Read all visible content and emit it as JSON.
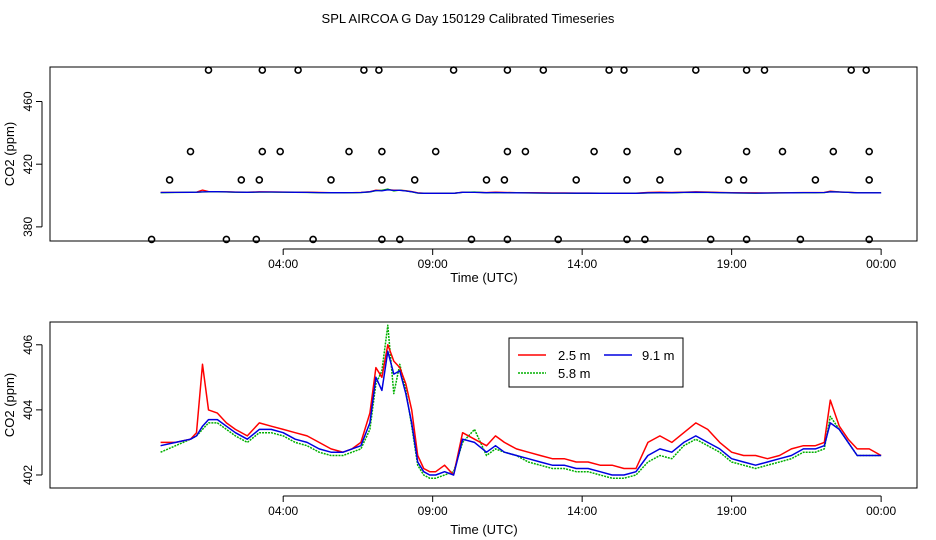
{
  "title": "SPL AIRCOA G  Day 150129  Calibrated Timeseries",
  "chart_data": [
    {
      "type": "scatter+line",
      "xlabel": "Time (UTC)",
      "ylabel": "CO2 (ppm)",
      "xlim": [
        -3.8,
        25.2
      ],
      "ylim": [
        371,
        482
      ],
      "x_ticks": [
        4,
        9,
        14,
        19,
        24
      ],
      "x_tick_labels": [
        "04:00",
        "09:00",
        "14:00",
        "19:00",
        "00:00"
      ],
      "y_ticks": [
        380,
        420,
        460
      ],
      "y_tick_labels": [
        "380",
        "420",
        "460"
      ],
      "grid": false,
      "points_style": "open circles",
      "points": [
        [
          -0.4,
          372
        ],
        [
          0.2,
          410
        ],
        [
          0.9,
          428
        ],
        [
          1.5,
          480
        ],
        [
          2.1,
          372
        ],
        [
          2.6,
          410
        ],
        [
          3.1,
          372
        ],
        [
          3.2,
          410
        ],
        [
          3.3,
          428
        ],
        [
          3.3,
          480
        ],
        [
          3.9,
          428
        ],
        [
          4.5,
          480
        ],
        [
          5.0,
          372
        ],
        [
          5.6,
          410
        ],
        [
          6.2,
          428
        ],
        [
          6.7,
          480
        ],
        [
          7.2,
          480
        ],
        [
          7.3,
          428
        ],
        [
          7.3,
          410
        ],
        [
          7.3,
          372
        ],
        [
          7.9,
          372
        ],
        [
          8.4,
          410
        ],
        [
          9.1,
          428
        ],
        [
          9.7,
          480
        ],
        [
          10.3,
          372
        ],
        [
          10.8,
          410
        ],
        [
          11.4,
          410
        ],
        [
          11.5,
          428
        ],
        [
          11.5,
          480
        ],
        [
          11.5,
          372
        ],
        [
          12.1,
          428
        ],
        [
          12.7,
          480
        ],
        [
          13.2,
          372
        ],
        [
          13.8,
          410
        ],
        [
          14.4,
          428
        ],
        [
          14.9,
          480
        ],
        [
          15.4,
          480
        ],
        [
          15.5,
          428
        ],
        [
          15.5,
          410
        ],
        [
          15.5,
          372
        ],
        [
          16.1,
          372
        ],
        [
          16.6,
          410
        ],
        [
          17.2,
          428
        ],
        [
          17.8,
          480
        ],
        [
          18.3,
          372
        ],
        [
          18.9,
          410
        ],
        [
          19.4,
          410
        ],
        [
          19.5,
          372
        ],
        [
          19.5,
          428
        ],
        [
          19.5,
          480
        ],
        [
          20.1,
          480
        ],
        [
          20.7,
          428
        ],
        [
          21.3,
          372
        ],
        [
          21.8,
          410
        ],
        [
          22.4,
          428
        ],
        [
          23.0,
          480
        ],
        [
          23.5,
          480
        ],
        [
          23.6,
          428
        ],
        [
          23.6,
          410
        ],
        [
          23.6,
          372
        ]
      ],
      "lines_flat_value": 402
    },
    {
      "type": "line",
      "xlabel": "Time (UTC)",
      "ylabel": "CO2 (ppm)",
      "xlim": [
        -3.8,
        25.2
      ],
      "ylim": [
        401.6,
        406.7
      ],
      "x_ticks": [
        4,
        9,
        14,
        19,
        24
      ],
      "x_tick_labels": [
        "04:00",
        "09:00",
        "14:00",
        "19:00",
        "00:00"
      ],
      "y_ticks": [
        402,
        404,
        406
      ],
      "y_tick_labels": [
        "402",
        "404",
        "406"
      ],
      "grid": false,
      "legend_position": "top-center",
      "series": [
        {
          "name": "2.5 m",
          "color": "#ff0000",
          "x": [
            -0.1,
            0.4,
            0.9,
            1.1,
            1.3,
            1.5,
            1.8,
            2.1,
            2.4,
            2.8,
            3.2,
            3.6,
            4.0,
            4.4,
            4.8,
            5.2,
            5.6,
            6.0,
            6.3,
            6.6,
            6.9,
            7.1,
            7.3,
            7.5,
            7.7,
            7.9,
            8.1,
            8.3,
            8.5,
            8.7,
            8.9,
            9.1,
            9.4,
            9.7,
            10.0,
            10.4,
            10.8,
            11.1,
            11.4,
            11.8,
            12.2,
            12.6,
            13.0,
            13.4,
            13.8,
            14.2,
            14.6,
            15.0,
            15.4,
            15.8,
            16.2,
            16.6,
            17.0,
            17.4,
            17.8,
            18.2,
            18.6,
            19.0,
            19.4,
            19.8,
            20.2,
            20.6,
            21.0,
            21.4,
            21.8,
            22.1,
            22.3,
            22.6,
            22.9,
            23.2,
            23.6,
            24.0
          ],
          "y": [
            403.0,
            403.0,
            403.1,
            403.3,
            405.4,
            404.0,
            403.9,
            403.6,
            403.4,
            403.2,
            403.6,
            403.5,
            403.4,
            403.3,
            403.2,
            403.0,
            402.8,
            402.7,
            402.8,
            403.0,
            403.9,
            405.3,
            405.0,
            406.0,
            405.5,
            405.3,
            404.8,
            404.0,
            402.6,
            402.2,
            402.1,
            402.1,
            402.3,
            402.0,
            403.3,
            403.1,
            402.9,
            403.2,
            403.0,
            402.8,
            402.7,
            402.6,
            402.5,
            402.5,
            402.4,
            402.4,
            402.3,
            402.3,
            402.2,
            402.2,
            403.0,
            403.2,
            403.0,
            403.3,
            403.6,
            403.4,
            403.0,
            402.7,
            402.6,
            402.6,
            402.5,
            402.6,
            402.8,
            402.9,
            402.9,
            403.0,
            404.3,
            403.5,
            403.1,
            402.8,
            402.8,
            402.6
          ]
        },
        {
          "name": "5.8 m",
          "color": "#00b000",
          "x": [
            -0.1,
            0.4,
            0.9,
            1.1,
            1.3,
            1.5,
            1.8,
            2.1,
            2.4,
            2.8,
            3.2,
            3.6,
            4.0,
            4.4,
            4.8,
            5.2,
            5.6,
            6.0,
            6.3,
            6.6,
            6.9,
            7.1,
            7.3,
            7.5,
            7.7,
            7.9,
            8.1,
            8.3,
            8.5,
            8.7,
            8.9,
            9.1,
            9.4,
            9.7,
            10.0,
            10.4,
            10.8,
            11.1,
            11.4,
            11.8,
            12.2,
            12.6,
            13.0,
            13.4,
            13.8,
            14.2,
            14.6,
            15.0,
            15.4,
            15.8,
            16.2,
            16.6,
            17.0,
            17.4,
            17.8,
            18.2,
            18.6,
            19.0,
            19.4,
            19.8,
            20.2,
            20.6,
            21.0,
            21.4,
            21.8,
            22.1,
            22.3,
            22.6,
            22.9,
            23.2,
            23.6,
            24.0
          ],
          "y": [
            402.7,
            402.9,
            403.1,
            403.2,
            403.4,
            403.6,
            403.6,
            403.4,
            403.2,
            403.0,
            403.3,
            403.3,
            403.2,
            403.0,
            402.9,
            402.7,
            402.6,
            402.6,
            402.7,
            402.8,
            403.4,
            404.8,
            405.2,
            406.6,
            404.5,
            405.4,
            404.6,
            403.5,
            402.3,
            402.0,
            401.9,
            401.9,
            402.0,
            402.1,
            403.0,
            403.4,
            402.6,
            402.8,
            402.7,
            402.6,
            402.4,
            402.3,
            402.2,
            402.2,
            402.1,
            402.1,
            402.0,
            401.9,
            401.9,
            402.0,
            402.4,
            402.6,
            402.5,
            402.9,
            403.1,
            402.9,
            402.7,
            402.4,
            402.3,
            402.2,
            402.3,
            402.4,
            402.5,
            402.7,
            402.7,
            402.8,
            403.8,
            403.4,
            403.0,
            402.6,
            402.6,
            402.6
          ]
        },
        {
          "name": "9.1 m",
          "color": "#0000e0",
          "x": [
            -0.1,
            0.4,
            0.9,
            1.1,
            1.3,
            1.5,
            1.8,
            2.1,
            2.4,
            2.8,
            3.2,
            3.6,
            4.0,
            4.4,
            4.8,
            5.2,
            5.6,
            6.0,
            6.3,
            6.6,
            6.9,
            7.1,
            7.3,
            7.5,
            7.7,
            7.9,
            8.1,
            8.3,
            8.5,
            8.7,
            8.9,
            9.1,
            9.4,
            9.7,
            10.0,
            10.4,
            10.8,
            11.1,
            11.4,
            11.8,
            12.2,
            12.6,
            13.0,
            13.4,
            13.8,
            14.2,
            14.6,
            15.0,
            15.4,
            15.8,
            16.2,
            16.6,
            17.0,
            17.4,
            17.8,
            18.2,
            18.6,
            19.0,
            19.4,
            19.8,
            20.2,
            20.6,
            21.0,
            21.4,
            21.8,
            22.1,
            22.3,
            22.6,
            22.9,
            23.2,
            23.6,
            24.0
          ],
          "y": [
            402.9,
            403.0,
            403.1,
            403.2,
            403.5,
            403.7,
            403.7,
            403.5,
            403.3,
            403.1,
            403.4,
            403.4,
            403.3,
            403.1,
            403.0,
            402.8,
            402.7,
            402.7,
            402.8,
            402.9,
            403.6,
            405.0,
            404.6,
            405.8,
            405.1,
            405.2,
            404.5,
            403.6,
            402.4,
            402.1,
            402.0,
            402.0,
            402.1,
            402.0,
            403.1,
            403.0,
            402.7,
            402.9,
            402.7,
            402.6,
            402.5,
            402.4,
            402.3,
            402.3,
            402.2,
            402.2,
            402.1,
            402.0,
            402.0,
            402.1,
            402.6,
            402.8,
            402.7,
            403.0,
            403.2,
            403.0,
            402.8,
            402.5,
            402.4,
            402.3,
            402.4,
            402.5,
            402.6,
            402.8,
            402.8,
            402.9,
            403.6,
            403.4,
            403.0,
            402.6,
            402.6,
            402.6
          ]
        }
      ]
    }
  ]
}
